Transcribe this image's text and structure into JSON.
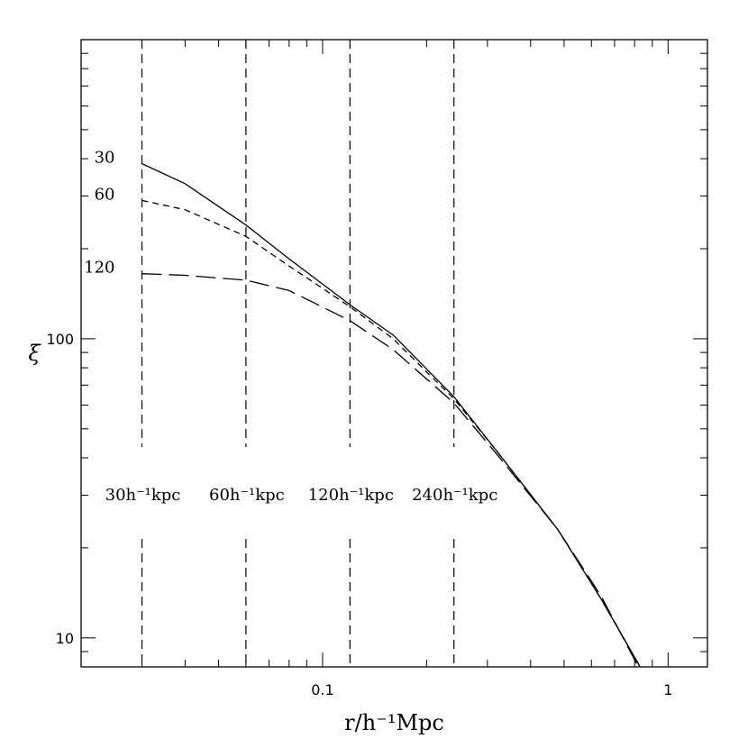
{
  "chart_data": {
    "type": "line",
    "title": "",
    "xlabel": "r/h⁻¹Mpc",
    "ylabel": "ξ",
    "xscale": "log",
    "yscale": "log",
    "xlim": [
      0.02,
      1.3
    ],
    "ylim": [
      8,
      1000
    ],
    "grid": false,
    "legend": "none",
    "x_ticks": [
      {
        "value": 0.1,
        "label": "0.1"
      },
      {
        "value": 1,
        "label": "1"
      }
    ],
    "y_ticks": [
      {
        "value": 10,
        "label": "10"
      },
      {
        "value": 100,
        "label": "100"
      }
    ],
    "series": [
      {
        "name": "30",
        "dash": "solid",
        "x": [
          0.03,
          0.04,
          0.06,
          0.08,
          0.12,
          0.16,
          0.24,
          0.32,
          0.48,
          0.64,
          0.83
        ],
        "y": [
          385,
          330,
          240,
          185,
          130,
          103,
          64,
          42,
          23,
          13.5,
          8
        ]
      },
      {
        "name": "60",
        "dash": "short",
        "x": [
          0.03,
          0.04,
          0.06,
          0.08,
          0.12,
          0.16,
          0.24,
          0.32,
          0.48,
          0.64,
          0.83
        ],
        "y": [
          290,
          270,
          220,
          175,
          128,
          100,
          63,
          42,
          23,
          13.5,
          8
        ]
      },
      {
        "name": "120",
        "dash": "long",
        "x": [
          0.03,
          0.04,
          0.06,
          0.08,
          0.12,
          0.16,
          0.24,
          0.32,
          0.48,
          0.64,
          0.82
        ],
        "y": [
          165,
          163,
          157,
          145,
          115,
          92,
          61,
          41,
          23,
          13.8,
          8
        ]
      }
    ],
    "vlines": [
      {
        "x": 0.03,
        "label": "30h⁻¹kpc"
      },
      {
        "x": 0.06,
        "label": "60h⁻¹kpc"
      },
      {
        "x": 0.12,
        "label": "120h⁻¹kpc"
      },
      {
        "x": 0.24,
        "label": "240h⁻¹kpc"
      }
    ]
  }
}
